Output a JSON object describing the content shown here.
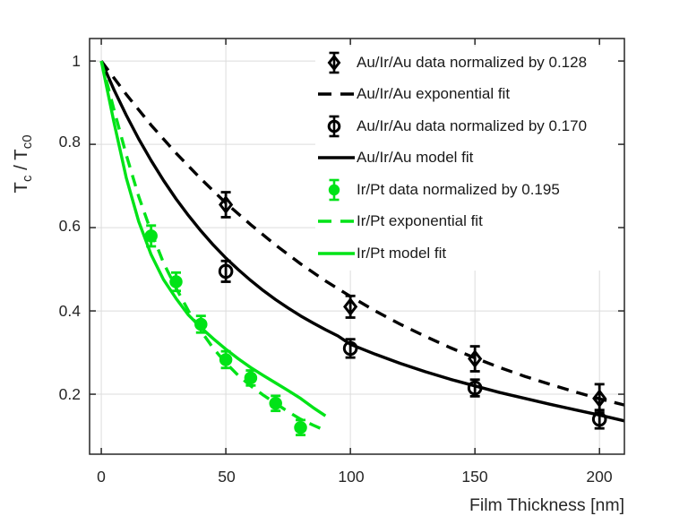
{
  "figure": {
    "xlabel": "Film Thickness [nm]",
    "ylabel": {
      "t1": "T",
      "s1": "c",
      "t2": " / T",
      "s2": "c0"
    },
    "background_color": "#ffffff"
  },
  "axes": {
    "x_tick_labels": [
      "0",
      "50",
      "100",
      "150",
      "200"
    ],
    "y_tick_labels": [
      "0.2",
      "0.4",
      "0.6",
      "0.8",
      "1"
    ],
    "axis_color": "#262626",
    "grid_color": "#dcdcdc",
    "text_color": "#262626",
    "legend_background": "#ffffff"
  },
  "chart_data": {
    "type": "line",
    "title": "",
    "xlabel": "Film Thickness [nm]",
    "ylabel": "T_c / T_c0",
    "xlim": [
      -4.7,
      210
    ],
    "ylim": [
      0.056,
      1.054
    ],
    "x_ticks": [
      0,
      50,
      100,
      150,
      200
    ],
    "y_ticks": [
      0.2,
      0.4,
      0.6,
      0.8,
      1.0
    ],
    "grid": true,
    "legend_position": "northeast-inside",
    "series": [
      {
        "name": "Au/Ir/Au data normalized by 0.128",
        "type": "errorbar-scatter",
        "marker": "diamond",
        "color": "#000000",
        "x": [
          50,
          100,
          150,
          200
        ],
        "y": [
          0.655,
          0.41,
          0.285,
          0.19
        ],
        "yerr": [
          0.03,
          0.026,
          0.03,
          0.034
        ]
      },
      {
        "name": "Au/Ir/Au exponential fit",
        "type": "line",
        "style": "dashed",
        "color": "#000000",
        "x": [
          0,
          10,
          20,
          30,
          40,
          50,
          60,
          70,
          80,
          90,
          100,
          110,
          120,
          130,
          140,
          150,
          160,
          170,
          180,
          190,
          200,
          210
        ],
        "y": [
          1,
          0.92,
          0.846,
          0.779,
          0.717,
          0.659,
          0.607,
          0.558,
          0.513,
          0.472,
          0.435,
          0.4,
          0.368,
          0.339,
          0.312,
          0.287,
          0.264,
          0.243,
          0.224,
          0.206,
          0.189,
          0.174
        ]
      },
      {
        "name": "Au/Ir/Au data normalized by 0.170",
        "type": "errorbar-scatter",
        "marker": "open-circle",
        "color": "#000000",
        "x": [
          50,
          100,
          150,
          200
        ],
        "y": [
          0.495,
          0.31,
          0.215,
          0.14
        ],
        "yerr": [
          0.025,
          0.022,
          0.02,
          0.022
        ]
      },
      {
        "name": "Au/Ir/Au model fit",
        "type": "line",
        "style": "solid",
        "color": "#000000",
        "x": [
          0,
          5,
          10,
          15,
          20,
          25,
          30,
          35,
          40,
          45,
          50,
          55,
          60,
          65,
          70,
          75,
          80,
          85,
          90,
          95,
          100,
          110,
          120,
          130,
          140,
          150,
          160,
          170,
          180,
          190,
          200,
          210
        ],
        "y": [
          1,
          0.932,
          0.87,
          0.813,
          0.761,
          0.713,
          0.669,
          0.629,
          0.592,
          0.558,
          0.527,
          0.499,
          0.473,
          0.449,
          0.427,
          0.407,
          0.388,
          0.371,
          0.355,
          0.34,
          0.32,
          0.296,
          0.274,
          0.254,
          0.236,
          0.22,
          0.204,
          0.19,
          0.176,
          0.163,
          0.15,
          0.136
        ]
      },
      {
        "name": "Ir/Pt data normalized by 0.195",
        "type": "errorbar-scatter",
        "marker": "filled-circle",
        "color": "#00e317",
        "x": [
          20,
          30,
          40,
          50,
          60,
          70,
          80
        ],
        "y": [
          0.58,
          0.47,
          0.368,
          0.283,
          0.239,
          0.178,
          0.12
        ],
        "yerr": [
          0.025,
          0.022,
          0.02,
          0.02,
          0.018,
          0.018,
          0.018
        ]
      },
      {
        "name": "Ir/Pt exponential fit",
        "type": "line",
        "style": "dashed",
        "color": "#00e317",
        "x": [
          0,
          5,
          10,
          15,
          20,
          25,
          30,
          35,
          40,
          45,
          50,
          55,
          60,
          65,
          70,
          75,
          80,
          85,
          88
        ],
        "y": [
          1,
          0.885,
          0.775,
          0.675,
          0.59,
          0.515,
          0.455,
          0.4,
          0.352,
          0.31,
          0.275,
          0.245,
          0.22,
          0.198,
          0.178,
          0.158,
          0.14,
          0.126,
          0.118
        ]
      },
      {
        "name": "Ir/Pt model fit",
        "type": "line",
        "style": "solid",
        "color": "#00e317",
        "x": [
          0,
          5,
          10,
          15,
          20,
          25,
          30,
          35,
          40,
          45,
          50,
          55,
          60,
          65,
          70,
          75,
          80,
          85,
          90
        ],
        "y": [
          1,
          0.855,
          0.72,
          0.615,
          0.535,
          0.475,
          0.43,
          0.39,
          0.36,
          0.333,
          0.308,
          0.285,
          0.264,
          0.245,
          0.227,
          0.209,
          0.19,
          0.168,
          0.148
        ]
      }
    ]
  }
}
